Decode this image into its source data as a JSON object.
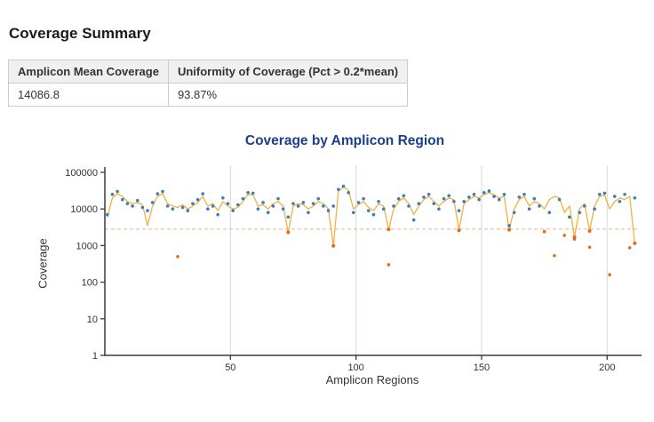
{
  "page": {
    "heading": "Coverage Summary"
  },
  "summary_table": {
    "columns": [
      "Amplicon Mean Coverage",
      "Uniformity of Coverage (Pct > 0.2*mean)"
    ],
    "rows": [
      [
        "14086.8",
        "93.87%"
      ]
    ]
  },
  "chart_data": {
    "type": "line",
    "title": "Coverage by Amplicon Region",
    "xlabel": "Amplicon Regions",
    "ylabel": "Coverage",
    "x_start": 1,
    "x_step": 2,
    "xlim": [
      0,
      213
    ],
    "ylim_log": [
      1,
      100000
    ],
    "yticks": [
      1,
      10,
      100,
      1000,
      10000,
      100000
    ],
    "xticks": [
      50,
      100,
      150,
      200
    ],
    "threshold": 2817,
    "grid": "vertical-only",
    "legend": "none",
    "colors": {
      "line": "#f0b142",
      "dot": "#3d7fb2",
      "low": "#e06c1a",
      "threshold": "#f5b183",
      "grid": "#d8d8d8",
      "axis": "#3c3c3c",
      "title": "#1b3e8f"
    },
    "series": [
      {
        "name": "amplicon-mean-coverage-line",
        "style": "line",
        "values": [
          6000,
          20000,
          26000,
          22000,
          16000,
          14000,
          15000,
          13000,
          3500,
          12000,
          22000,
          26000,
          14000,
          12000,
          11000,
          13000,
          10000,
          12000,
          15000,
          22000,
          12000,
          14000,
          9000,
          16000,
          12000,
          10000,
          11000,
          16000,
          25000,
          24000,
          12000,
          13000,
          10000,
          14000,
          16000,
          12000,
          2300,
          12000,
          14000,
          13000,
          10000,
          12000,
          16000,
          14000,
          10000,
          980,
          30000,
          40000,
          32000,
          10000,
          13000,
          16000,
          11000,
          9000,
          14000,
          12000,
          2750,
          10000,
          16000,
          20000,
          14000,
          7000,
          12000,
          18000,
          22000,
          16000,
          12000,
          16000,
          20000,
          18000,
          2600,
          14000,
          18000,
          22000,
          20000,
          25000,
          28000,
          24000,
          20000,
          22000,
          2700,
          10000,
          18000,
          22000,
          12000,
          16000,
          14000,
          10000,
          18000,
          22000,
          20000,
          8000,
          12000,
          1700,
          10000,
          14000,
          2500,
          12000,
          22000,
          24000,
          10000,
          16000,
          20000,
          18000,
          22000,
          1150
        ]
      },
      {
        "name": "amplicon-coverage-points",
        "style": "scatter",
        "values": [
          7000,
          25000,
          30000,
          18000,
          14000,
          12000,
          17000,
          11000,
          9000,
          15000,
          26000,
          30000,
          12000,
          10000,
          500,
          11000,
          9000,
          14000,
          18000,
          26000,
          10000,
          12000,
          7000,
          20000,
          14000,
          9000,
          13000,
          19000,
          28000,
          27000,
          10000,
          15000,
          8000,
          12000,
          19000,
          10000,
          6000,
          14000,
          12000,
          15000,
          8000,
          14000,
          19000,
          12000,
          9000,
          12000,
          34000,
          42000,
          28000,
          8000,
          15000,
          19000,
          9000,
          7000,
          16000,
          10000,
          300,
          12000,
          19000,
          23000,
          12000,
          5000,
          14000,
          21000,
          25000,
          14000,
          10000,
          19000,
          23000,
          16000,
          9000,
          16000,
          21000,
          25000,
          18000,
          28000,
          31000,
          22000,
          18000,
          25000,
          3500,
          8000,
          21000,
          25000,
          10000,
          19000,
          12000,
          2400,
          8000,
          530,
          18000,
          1900,
          6000,
          1500,
          8000,
          12000,
          900,
          10000,
          25000,
          27000,
          160,
          22000,
          16000,
          25000,
          870,
          20000
        ]
      }
    ]
  }
}
